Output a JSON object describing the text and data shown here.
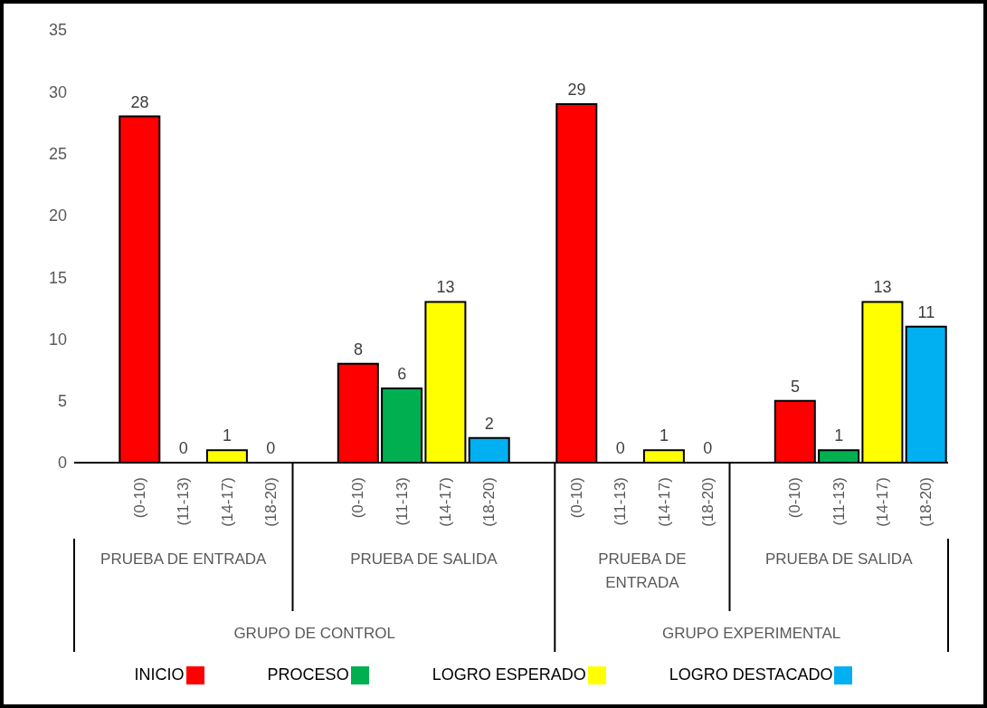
{
  "chart_data": {
    "type": "bar",
    "stacked": true,
    "data_labels": true,
    "legend": "bottom",
    "grid": false,
    "categories": [
      null,
      "(0-10)",
      "(11-13)",
      "(14-17)",
      "(18-20)",
      null,
      "(0-10)",
      "(11-13)",
      "(14-17)",
      "(18-20)",
      null,
      "(0-10)",
      "(11-13)",
      "(14-17)",
      "(18-20)",
      null,
      "(0-10)",
      "(11-13)",
      "(14-17)",
      "(18-20)"
    ],
    "series": [
      {
        "name": "INICIO",
        "color": "#ff0000",
        "values": [
          null,
          28,
          null,
          null,
          null,
          null,
          8,
          null,
          null,
          null,
          null,
          29,
          null,
          null,
          null,
          null,
          5,
          null,
          null,
          null
        ]
      },
      {
        "name": "PROCESO",
        "color": "#00b050",
        "values": [
          null,
          null,
          0,
          null,
          null,
          null,
          null,
          6,
          null,
          null,
          null,
          null,
          0,
          null,
          null,
          null,
          null,
          1,
          null,
          null
        ]
      },
      {
        "name": "LOGRO ESPERADO",
        "color": "#ffff00",
        "values": [
          null,
          null,
          null,
          1,
          null,
          null,
          null,
          null,
          13,
          null,
          null,
          null,
          null,
          1,
          null,
          null,
          null,
          null,
          13,
          null
        ]
      },
      {
        "name": "LOGRO DESTACADO",
        "color": "#00b0f0",
        "values": [
          null,
          null,
          null,
          null,
          0,
          null,
          null,
          null,
          null,
          2,
          null,
          null,
          null,
          null,
          0,
          null,
          null,
          null,
          null,
          11
        ]
      }
    ],
    "ylim": [
      0,
      35
    ],
    "yticks": [
      0,
      5,
      10,
      15,
      20,
      25,
      30,
      35
    ],
    "annotations": [
      "PRUEBA DE ENTRADA",
      "PRUEBA DE SALIDA",
      "PRUEBA DE ENTRADA",
      "PRUEBA DE SALIDA",
      "GRUPO DE CONTROL",
      "GRUPO EXPERIMENTAL"
    ]
  }
}
